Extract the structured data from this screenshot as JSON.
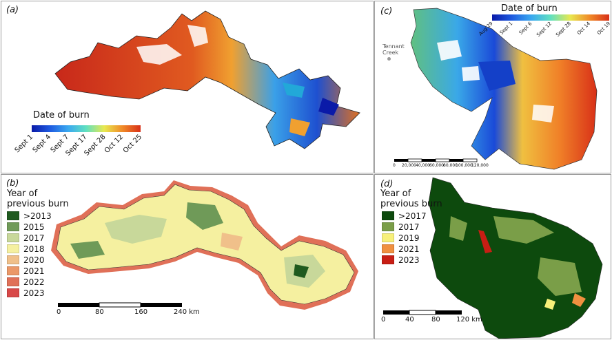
{
  "panels": {
    "a": {
      "label": "(a)",
      "legend_title": "Date of burn",
      "ticks": [
        "Sept 1",
        "Sept 4",
        "Sept 7",
        "Sept 17",
        "Sept 28",
        "Oct 12",
        "Oct 25"
      ]
    },
    "b": {
      "label": "(b)",
      "legend_title_line1": "Year of",
      "legend_title_line2": "previous burn",
      "categories": [
        {
          "label": ">2013",
          "color": "#1f5a1f"
        },
        {
          "label": "2015",
          "color": "#6f9a58"
        },
        {
          "label": "2017",
          "color": "#c8d89a"
        },
        {
          "label": "2018",
          "color": "#f5f0a0"
        },
        {
          "label": "2020",
          "color": "#f0c08a"
        },
        {
          "label": "2021",
          "color": "#eb9868"
        },
        {
          "label": "2022",
          "color": "#e07058"
        },
        {
          "label": "2023",
          "color": "#d84848"
        }
      ],
      "scale_labels": [
        "0",
        "80",
        "160",
        "240 km"
      ]
    },
    "c": {
      "label": "(c)",
      "legend_title": "Date of burn",
      "ticks": [
        "Aug 29",
        "Sept 1",
        "Sept 6",
        "Sept 12",
        "Sept 28",
        "Oct 14",
        "Oct 19"
      ],
      "town_line1": "Tennant",
      "town_line2": "Creek",
      "scale_labels": [
        "0",
        "20,000",
        "40,000",
        "60,000",
        "80,000",
        "100,000",
        "120,000"
      ]
    },
    "d": {
      "label": "(d)",
      "legend_title_line1": "Year of",
      "legend_title_line2": "previous burn",
      "categories": [
        {
          "label": ">2017",
          "color": "#0d4a0d"
        },
        {
          "label": "2017",
          "color": "#7a9e48"
        },
        {
          "label": "2019",
          "color": "#f7f07a"
        },
        {
          "label": "2021",
          "color": "#f09040"
        },
        {
          "label": "2023",
          "color": "#c81e14"
        }
      ],
      "scale_labels": [
        "0",
        "40",
        "80",
        "120 km"
      ]
    }
  },
  "colors": {
    "date_ramp": [
      "#0a1aa8",
      "#1e5ae0",
      "#3aa8f0",
      "#60e0c0",
      "#e8e850",
      "#f08a28",
      "#d83018"
    ]
  }
}
